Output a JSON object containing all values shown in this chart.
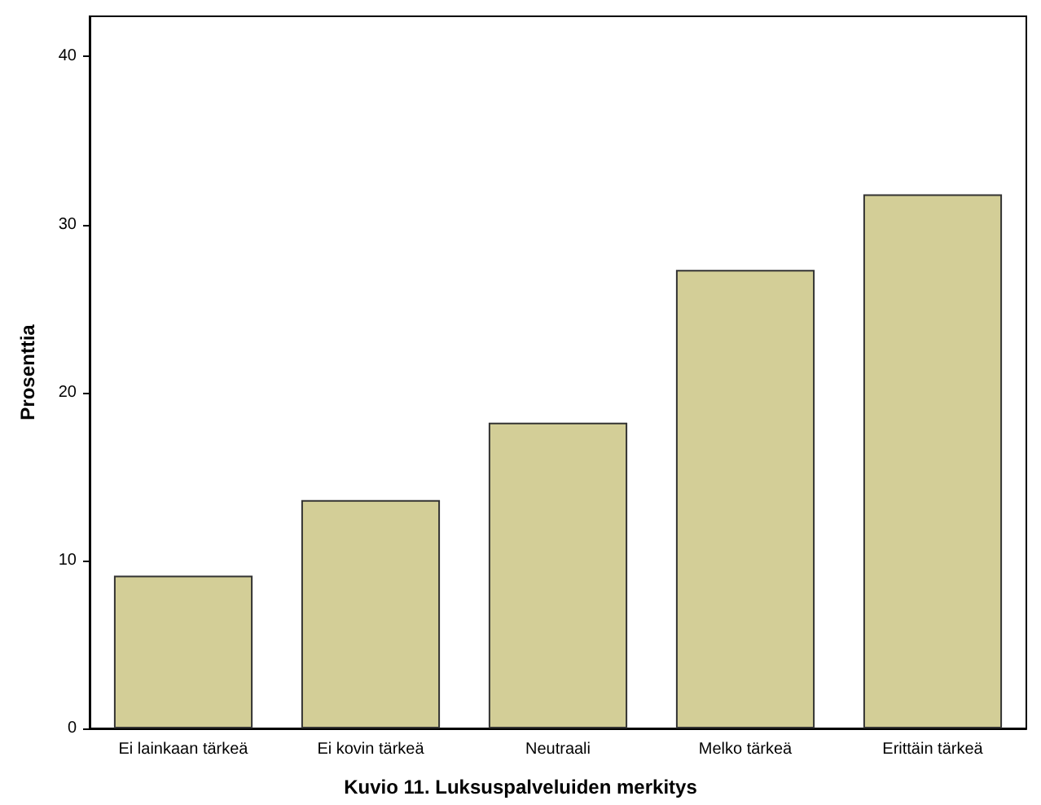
{
  "chart_data": {
    "type": "bar",
    "title": "Kuvio 11. Luksuspalveluiden merkitys",
    "ylabel": "Prosenttia",
    "categories": [
      "Ei lainkaan tärkeä",
      "Ei kovin tärkeä",
      "Neutraali",
      "Melko tärkeä",
      "Erittäin tärkeä"
    ],
    "values": [
      9.1,
      13.6,
      18.2,
      27.3,
      31.8
    ],
    "color": "#d3ce97",
    "ylim": [
      0,
      42.4
    ],
    "yticks": [
      0,
      10,
      20,
      30,
      40
    ],
    "grid": false
  }
}
